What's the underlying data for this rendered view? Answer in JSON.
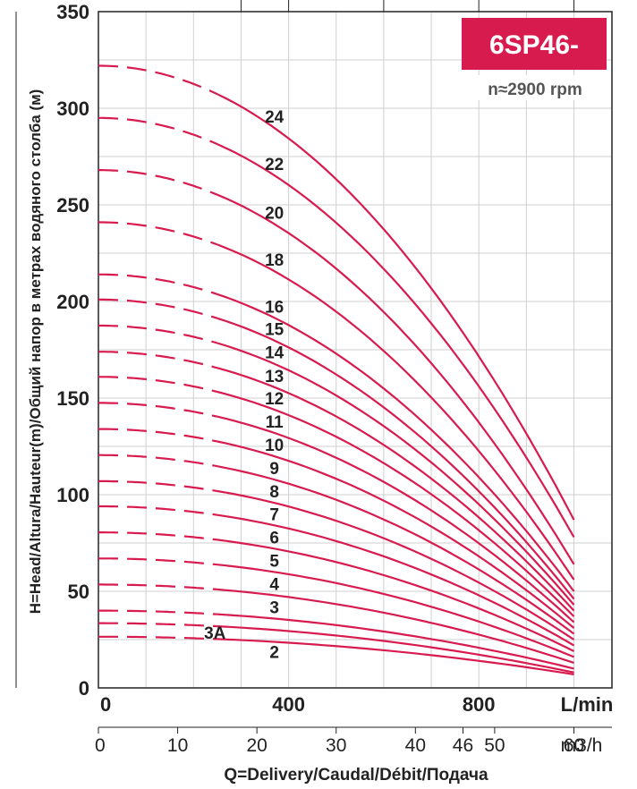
{
  "chart_data": {
    "type": "line",
    "title": "6SP46-",
    "subtitle": "n≈2900 rpm",
    "ylabel": "H=Head/Altura/Hauteur(m)/Общий напор в метрах водяного столба (м)",
    "xlabel": "Q=Delivery/Caudal/Débit/Подача",
    "x_unit_primary": "L/min",
    "x_unit_secondary": "m3/h",
    "xlim": [
      0,
      1080
    ],
    "ylim": [
      0,
      350
    ],
    "x_ticks_primary": [
      {
        "value": 0,
        "label": "0"
      },
      {
        "value": 400,
        "label": "400"
      },
      {
        "value": 800,
        "label": "800"
      }
    ],
    "x_ticks_secondary": [
      {
        "value": 0,
        "label": "0"
      },
      {
        "value": 10,
        "label": "10"
      },
      {
        "value": 20,
        "label": "20"
      },
      {
        "value": 30,
        "label": "30"
      },
      {
        "value": 40,
        "label": "40"
      },
      {
        "value": 46,
        "label": "46"
      },
      {
        "value": 50,
        "label": "50"
      },
      {
        "value": 60,
        "label": "60"
      }
    ],
    "y_ticks": [
      {
        "value": 0,
        "label": "0"
      },
      {
        "value": 50,
        "label": "50"
      },
      {
        "value": 100,
        "label": "100"
      },
      {
        "value": 150,
        "label": "150"
      },
      {
        "value": 200,
        "label": "200"
      },
      {
        "value": 250,
        "label": "250"
      },
      {
        "value": 300,
        "label": "300"
      },
      {
        "value": 350,
        "label": "350"
      }
    ],
    "grid": true,
    "dashed_until_x": 250,
    "series": [
      {
        "name": "2",
        "h0": 26.5,
        "h_end": 7
      },
      {
        "name": "3A",
        "h0": 33.5,
        "h_end": 8
      },
      {
        "name": "3",
        "h0": 40,
        "h_end": 10
      },
      {
        "name": "4",
        "h0": 53.5,
        "h_end": 13
      },
      {
        "name": "5",
        "h0": 67,
        "h_end": 16
      },
      {
        "name": "6",
        "h0": 80.5,
        "h_end": 19
      },
      {
        "name": "7",
        "h0": 94,
        "h_end": 22
      },
      {
        "name": "8",
        "h0": 107,
        "h_end": 25
      },
      {
        "name": "9",
        "h0": 120.5,
        "h_end": 28
      },
      {
        "name": "10",
        "h0": 134,
        "h_end": 31
      },
      {
        "name": "11",
        "h0": 147.5,
        "h_end": 34
      },
      {
        "name": "12",
        "h0": 161,
        "h_end": 37
      },
      {
        "name": "13",
        "h0": 174,
        "h_end": 40
      },
      {
        "name": "14",
        "h0": 187.5,
        "h_end": 43
      },
      {
        "name": "15",
        "h0": 201,
        "h_end": 46
      },
      {
        "name": "16",
        "h0": 214,
        "h_end": 50
      },
      {
        "name": "18",
        "h0": 241,
        "h_end": 56
      },
      {
        "name": "20",
        "h0": 268,
        "h_end": 64
      },
      {
        "name": "22",
        "h0": 295,
        "h_end": 78
      },
      {
        "name": "24",
        "h0": 322,
        "h_end": 87
      }
    ]
  }
}
